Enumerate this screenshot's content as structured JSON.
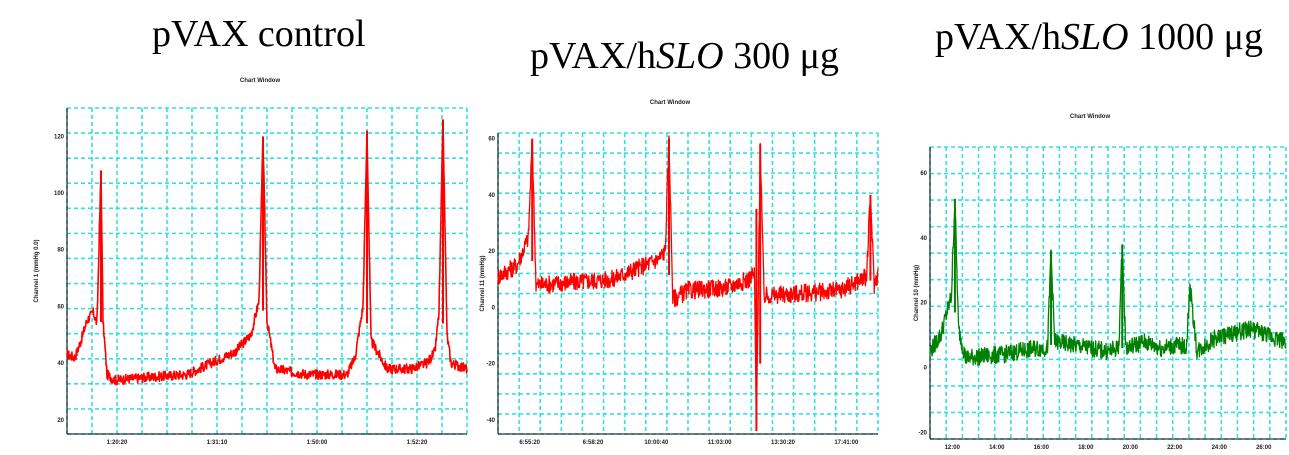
{
  "headings": {
    "left": "pVAX control",
    "middle_prefix": "pVAX/h",
    "middle_italic": "SLO",
    "middle_suffix": " 300 μg",
    "right_prefix": "pVAX/h",
    "right_italic": "SLO",
    "right_suffix": " 1000 μg"
  },
  "chart_data": [
    {
      "type": "line",
      "title": "Chart Window",
      "ylabel": "Channel 1 (mmHg 0.0)",
      "color": "#ff0000",
      "ylim": [
        15,
        130
      ],
      "yticks": [
        "20",
        "40",
        "60",
        "80",
        "100",
        "120"
      ],
      "xticks": [
        "1:20:20",
        "1:31:10",
        "1:50:00",
        "1:52:20"
      ],
      "series": [
        {
          "x": [
            0,
            0.02,
            0.035,
            0.05,
            0.065,
            0.075,
            0.085,
            0.09,
            0.1,
            0.12,
            0.2,
            0.3,
            0.42,
            0.46,
            0.48,
            0.49,
            0.5,
            0.52,
            0.6,
            0.7,
            0.72,
            0.74,
            0.75,
            0.76,
            0.8,
            0.86,
            0.9,
            0.92,
            0.93,
            0.94,
            0.95,
            0.96,
            1.0
          ],
          "y": [
            43,
            42,
            48,
            55,
            58,
            54,
            108,
            55,
            36,
            34,
            35,
            36,
            44,
            50,
            62,
            120,
            55,
            38,
            36,
            36,
            42,
            60,
            122,
            48,
            38,
            38,
            40,
            44,
            58,
            126,
            50,
            40,
            38
          ]
        }
      ]
    },
    {
      "type": "line",
      "title": "Chart Window",
      "ylabel": "Channel 11 (mmHg)",
      "color": "#ff0000",
      "ylim": [
        -45,
        62
      ],
      "yticks": [
        "60",
        "40",
        "20",
        "0",
        "-20",
        "-40"
      ],
      "xticks": [
        "6:55:20",
        "6:58:20",
        "10:00:40",
        "11:03:00",
        "13:30:20",
        "17:41:00"
      ],
      "series": [
        {
          "x": [
            0,
            0.05,
            0.08,
            0.09,
            0.1,
            0.2,
            0.3,
            0.42,
            0.44,
            0.45,
            0.46,
            0.5,
            0.6,
            0.66,
            0.675,
            0.68,
            0.69,
            0.7,
            0.8,
            0.9,
            0.97,
            0.98,
            0.99,
            1.0
          ],
          "y": [
            11,
            15,
            25,
            60,
            8,
            9,
            10,
            17,
            20,
            60,
            3,
            6,
            7,
            10,
            12,
            -44,
            58,
            4,
            5,
            6,
            11,
            40,
            8,
            12
          ]
        }
      ]
    },
    {
      "type": "line",
      "title": "Chart Window",
      "ylabel": "Channel 10 (mmHg)",
      "color": "#008000",
      "ylim": [
        -22,
        68
      ],
      "yticks": [
        "60",
        "40",
        "20",
        "0",
        "-20"
      ],
      "xticks": [
        "12:00",
        "14:00",
        "16:00",
        "18:00",
        "20:00",
        "22:00",
        "24:00",
        "26:00"
      ],
      "series": [
        {
          "x": [
            0,
            0.03,
            0.06,
            0.07,
            0.08,
            0.1,
            0.2,
            0.3,
            0.33,
            0.34,
            0.35,
            0.45,
            0.5,
            0.53,
            0.54,
            0.55,
            0.6,
            0.65,
            0.7,
            0.72,
            0.73,
            0.75,
            0.8,
            0.9,
            1.0
          ],
          "y": [
            5,
            10,
            22,
            52,
            12,
            3,
            4,
            6,
            6,
            36,
            8,
            6,
            5,
            6,
            38,
            6,
            8,
            6,
            7,
            6,
            25,
            5,
            9,
            12,
            8
          ]
        }
      ]
    }
  ]
}
